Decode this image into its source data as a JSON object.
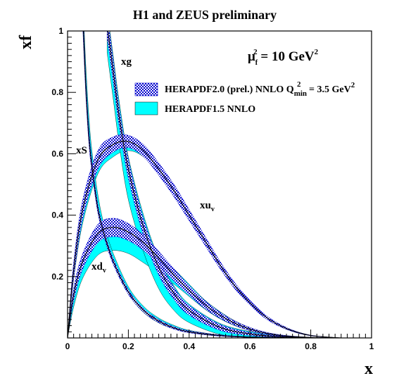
{
  "chart_data": {
    "type": "area",
    "title": "H1 and ZEUS preliminary",
    "xlabel": "x",
    "ylabel": "xf",
    "xlim": [
      0,
      1
    ],
    "ylim": [
      0,
      1
    ],
    "xticks": [
      "0",
      "0.2",
      "0.4",
      "0.6",
      "0.8",
      "1"
    ],
    "yticks": [
      "0.2",
      "0.4",
      "0.6",
      "0.8",
      "1"
    ],
    "scale_label": {
      "text": "μ",
      "sub": "f",
      "sup": "2",
      "rest": " = 10 GeV",
      "rest_sup": "2"
    },
    "legend": [
      {
        "name": "HERAPDF2.0 (prel.) NNLO Q",
        "sub": "min",
        "sup": "2",
        "tail": " = 3.5 GeV",
        "tail_sup": "2",
        "style": "hatched-blue"
      },
      {
        "name": "HERAPDF1.5 NNLO",
        "style": "cyan-fill"
      }
    ],
    "curve_labels": {
      "xg": "xg",
      "xS": "xS",
      "xuv": {
        "text": "xu",
        "sub": "v"
      },
      "xdv": {
        "text": "xd",
        "sub": "v"
      }
    },
    "series": [
      {
        "name": "xu_v",
        "x": [
          0.0,
          0.02,
          0.05,
          0.1,
          0.15,
          0.2,
          0.25,
          0.3,
          0.35,
          0.4,
          0.45,
          0.5,
          0.55,
          0.6,
          0.65,
          0.7,
          0.75,
          0.8,
          0.85,
          0.9
        ],
        "h20": {
          "center": [
            0.0,
            0.22,
            0.42,
            0.58,
            0.63,
            0.64,
            0.61,
            0.55,
            0.48,
            0.4,
            0.32,
            0.24,
            0.17,
            0.115,
            0.07,
            0.04,
            0.02,
            0.008,
            0.003,
            0.0
          ],
          "width": [
            0,
            0.025,
            0.03,
            0.03,
            0.025,
            0.02,
            0.02,
            0.02,
            0.02,
            0.018,
            0.015,
            0.012,
            0.01,
            0.008,
            0.006,
            0.004,
            0.002,
            0.001,
            0.0005,
            0
          ]
        },
        "h15": {
          "center": [
            0.0,
            0.21,
            0.4,
            0.56,
            0.61,
            0.625,
            0.605,
            0.55,
            0.48,
            0.4,
            0.32,
            0.24,
            0.17,
            0.115,
            0.07,
            0.04,
            0.02,
            0.008,
            0.003,
            0.0
          ],
          "width": [
            0,
            0.02,
            0.025,
            0.025,
            0.02,
            0.015,
            0.015,
            0.015,
            0.015,
            0.012,
            0.01,
            0.008,
            0.006,
            0.005,
            0.004,
            0.003,
            0.002,
            0.001,
            0.0005,
            0
          ]
        }
      },
      {
        "name": "xd_v",
        "x": [
          0.0,
          0.02,
          0.05,
          0.1,
          0.15,
          0.2,
          0.25,
          0.3,
          0.35,
          0.4,
          0.45,
          0.5,
          0.55,
          0.6,
          0.65,
          0.7,
          0.75,
          0.8,
          0.85,
          0.9
        ],
        "h20": {
          "center": [
            0.0,
            0.14,
            0.25,
            0.34,
            0.36,
            0.345,
            0.31,
            0.26,
            0.205,
            0.155,
            0.11,
            0.075,
            0.048,
            0.029,
            0.016,
            0.008,
            0.004,
            0.0015,
            0.0005,
            0.0
          ],
          "width": [
            0,
            0.02,
            0.025,
            0.03,
            0.03,
            0.028,
            0.025,
            0.022,
            0.02,
            0.016,
            0.013,
            0.01,
            0.007,
            0.005,
            0.003,
            0.002,
            0.001,
            0.0005,
            0.0002,
            0
          ]
        },
        "h15": {
          "center": [
            0.0,
            0.12,
            0.22,
            0.3,
            0.32,
            0.31,
            0.28,
            0.24,
            0.2,
            0.155,
            0.11,
            0.075,
            0.048,
            0.029,
            0.016,
            0.008,
            0.004,
            0.0015,
            0.0005,
            0.0
          ],
          "width": [
            0,
            0.02,
            0.025,
            0.03,
            0.035,
            0.035,
            0.035,
            0.03,
            0.025,
            0.02,
            0.015,
            0.012,
            0.008,
            0.005,
            0.003,
            0.002,
            0.001,
            0.0005,
            0.0002,
            0
          ]
        }
      },
      {
        "name": "xS",
        "x": [
          0.05,
          0.06,
          0.07,
          0.08,
          0.1,
          0.12,
          0.15,
          0.2,
          0.25,
          0.3,
          0.35,
          0.4,
          0.5,
          0.6,
          0.7,
          0.8
        ],
        "h20": {
          "center": [
            1.05,
            0.82,
            0.66,
            0.56,
            0.42,
            0.34,
            0.25,
            0.15,
            0.09,
            0.055,
            0.033,
            0.02,
            0.008,
            0.003,
            0.001,
            0.0
          ],
          "width": [
            0.04,
            0.03,
            0.025,
            0.02,
            0.015,
            0.012,
            0.01,
            0.008,
            0.006,
            0.005,
            0.004,
            0.003,
            0.002,
            0.001,
            0.0005,
            0
          ]
        },
        "h15": {
          "center": [
            1.07,
            0.85,
            0.69,
            0.58,
            0.44,
            0.35,
            0.26,
            0.155,
            0.093,
            0.057,
            0.035,
            0.021,
            0.008,
            0.003,
            0.001,
            0.0
          ],
          "width": [
            0.05,
            0.04,
            0.035,
            0.03,
            0.025,
            0.02,
            0.016,
            0.012,
            0.01,
            0.008,
            0.006,
            0.004,
            0.002,
            0.001,
            0.0005,
            0
          ]
        }
      },
      {
        "name": "xg",
        "x": [
          0.13,
          0.15,
          0.17,
          0.2,
          0.25,
          0.3,
          0.35,
          0.4,
          0.5,
          0.6,
          0.7,
          0.8
        ],
        "h20": {
          "center": [
            1.02,
            0.87,
            0.72,
            0.55,
            0.36,
            0.23,
            0.145,
            0.09,
            0.035,
            0.013,
            0.004,
            0.0
          ],
          "width": [
            0.04,
            0.035,
            0.03,
            0.03,
            0.028,
            0.025,
            0.02,
            0.016,
            0.01,
            0.005,
            0.002,
            0
          ]
        },
        "h15": {
          "center": [
            1.0,
            0.85,
            0.7,
            0.52,
            0.34,
            0.21,
            0.13,
            0.08,
            0.03,
            0.011,
            0.003,
            0.0
          ],
          "width": [
            0.07,
            0.07,
            0.07,
            0.07,
            0.06,
            0.05,
            0.04,
            0.03,
            0.018,
            0.01,
            0.004,
            0
          ]
        }
      }
    ],
    "colors": {
      "h15_fill": "#00ffff",
      "h20_hatch": "#0000cc",
      "center_line": "#000000",
      "axis": "#000000"
    }
  }
}
